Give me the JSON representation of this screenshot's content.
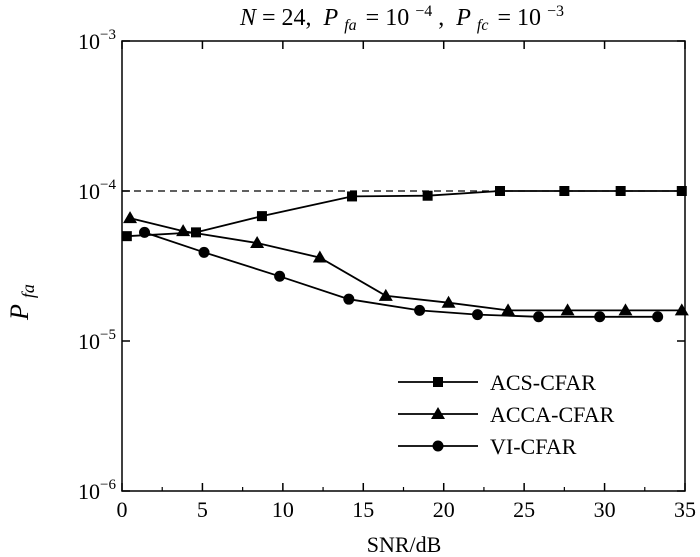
{
  "chart_data": {
    "type": "line",
    "title": {
      "n_var": "N",
      "n_val": "= 24,",
      "pfa_var": "P",
      "pfa_sub": "fa",
      "pfa_eq": "= 10",
      "pfa_exp": "−4",
      "pfa_sep": ",",
      "pfc_var": "P",
      "pfc_sub": "fc",
      "pfc_eq": "= 10",
      "pfc_exp": "−3"
    },
    "xlabel": "SNR/dB",
    "ylabel": {
      "var": "P",
      "sub": "fa"
    },
    "xlim": [
      0,
      35
    ],
    "ylim_exp": [
      -6,
      -3
    ],
    "yscale": "log",
    "x_ticks": [
      {
        "v": 0,
        "label": "0"
      },
      {
        "v": 5,
        "label": "5"
      },
      {
        "v": 10,
        "label": "10"
      },
      {
        "v": 15,
        "label": "15"
      },
      {
        "v": 20,
        "label": "20"
      },
      {
        "v": 25,
        "label": "25"
      },
      {
        "v": 30,
        "label": "30"
      },
      {
        "v": 35,
        "label": "35"
      }
    ],
    "y_ticks": [
      {
        "exp": -3,
        "base": "10",
        "sup": "−3"
      },
      {
        "exp": -4,
        "base": "10",
        "sup": "−4"
      },
      {
        "exp": -5,
        "base": "10",
        "sup": "−5"
      },
      {
        "exp": -6,
        "base": "10",
        "sup": "−6"
      }
    ],
    "reference_line": {
      "y": 0.0001,
      "style": "dashed"
    },
    "grid": false,
    "legend_position": "bottom-right",
    "series": [
      {
        "name": "ACS-CFAR",
        "marker": "square",
        "x": [
          0.3,
          4.6,
          8.7,
          14.3,
          19.0,
          23.5,
          27.5,
          31.0,
          34.8
        ],
        "y": [
          5e-05,
          5.3e-05,
          6.8e-05,
          9.2e-05,
          9.3e-05,
          0.0001,
          0.0001,
          0.0001,
          0.0001
        ]
      },
      {
        "name": "ACCA-CFAR",
        "marker": "triangle",
        "x": [
          0.5,
          3.8,
          8.4,
          12.3,
          16.4,
          20.3,
          24.0,
          27.7,
          31.3,
          34.8
        ],
        "y": [
          6.6e-05,
          5.4e-05,
          4.5e-05,
          3.6e-05,
          2e-05,
          1.8e-05,
          1.6e-05,
          1.6e-05,
          1.6e-05,
          1.6e-05
        ]
      },
      {
        "name": "VI-CFAR",
        "marker": "circle",
        "x": [
          1.4,
          5.1,
          9.8,
          14.1,
          18.5,
          22.1,
          25.9,
          29.7,
          33.3
        ],
        "y": [
          5.3e-05,
          3.9e-05,
          2.7e-05,
          1.9e-05,
          1.6e-05,
          1.5e-05,
          1.45e-05,
          1.45e-05,
          1.45e-05
        ]
      }
    ]
  }
}
